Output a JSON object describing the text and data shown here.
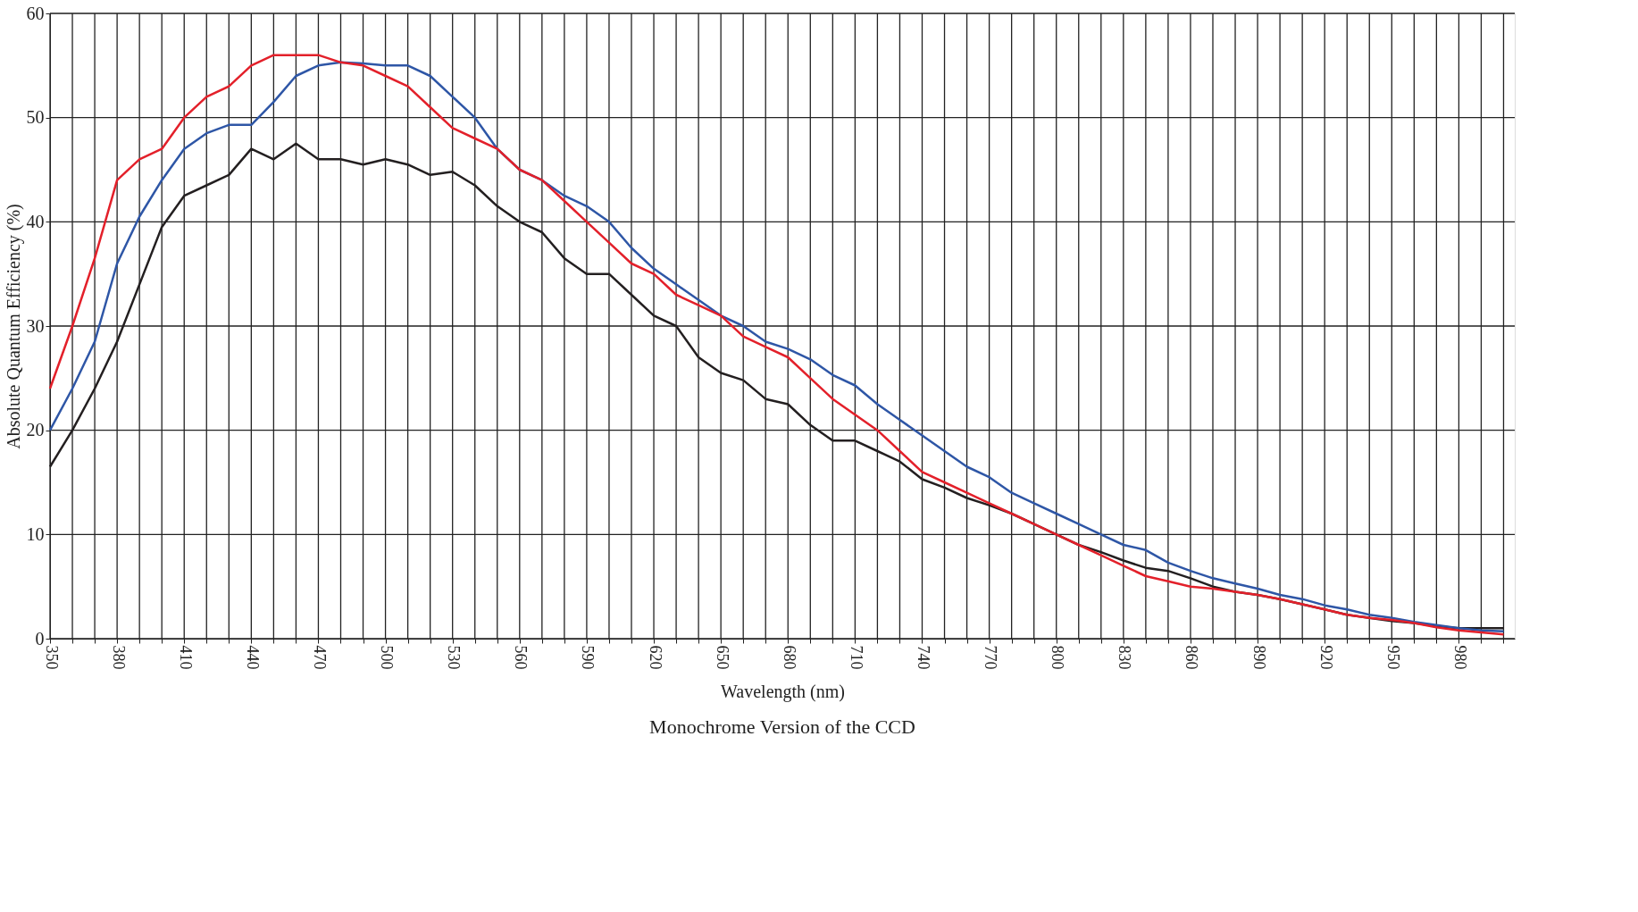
{
  "chart_data": {
    "type": "line",
    "xlabel": "Wavelength (nm)",
    "ylabel": "Absolute Quantum Efficiency (%)",
    "annotations": [
      "Monochrome Version of the CCD"
    ],
    "x": [
      350,
      360,
      370,
      380,
      390,
      400,
      410,
      420,
      430,
      440,
      450,
      460,
      470,
      480,
      490,
      500,
      510,
      520,
      530,
      540,
      550,
      560,
      570,
      580,
      590,
      600,
      610,
      620,
      630,
      640,
      650,
      660,
      670,
      680,
      690,
      700,
      710,
      720,
      730,
      740,
      750,
      760,
      770,
      780,
      790,
      800,
      810,
      820,
      830,
      840,
      850,
      860,
      870,
      880,
      890,
      900,
      910,
      920,
      930,
      940,
      950,
      960,
      970,
      980,
      990,
      1000
    ],
    "series": [
      {
        "color": "#231f20",
        "values": [
          16.5,
          20,
          24,
          28.5,
          34,
          39.5,
          42.5,
          43.5,
          44.5,
          47,
          46,
          47.5,
          46,
          46,
          45.5,
          46,
          45.5,
          44.5,
          44.8,
          43.5,
          41.5,
          40,
          39,
          36.5,
          35,
          35,
          33,
          31,
          30,
          27,
          25.5,
          24.8,
          23,
          22.5,
          20.5,
          19,
          19,
          18,
          17,
          15.3,
          14.5,
          13.5,
          12.8,
          12,
          11,
          10,
          9,
          8.3,
          7.5,
          6.8,
          6.5,
          5.8,
          5,
          4.5,
          4.2,
          3.8,
          3.3,
          2.8,
          2.3,
          2,
          1.7,
          1.5,
          1.2,
          1,
          1,
          1
        ]
      },
      {
        "color": "#2e56a6",
        "values": [
          20,
          24,
          28.5,
          36,
          40.5,
          44,
          47,
          48.5,
          49.3,
          49.3,
          51.5,
          54,
          55,
          55.3,
          55.2,
          55,
          55,
          54,
          52,
          50,
          47,
          45,
          44,
          42.5,
          41.5,
          40,
          37.5,
          35.5,
          34,
          32.5,
          31,
          30,
          28.5,
          27.8,
          26.8,
          25.3,
          24.3,
          22.5,
          21,
          19.5,
          18,
          16.5,
          15.5,
          14,
          13,
          12,
          11,
          10,
          9,
          8.5,
          7.3,
          6.5,
          5.8,
          5.3,
          4.8,
          4.2,
          3.8,
          3.2,
          2.8,
          2.3,
          2,
          1.6,
          1.3,
          1,
          0.8,
          0.7
        ]
      },
      {
        "color": "#e3202a",
        "values": [
          24,
          30,
          36.5,
          44,
          46,
          47,
          50,
          52,
          53,
          55,
          56,
          56,
          56,
          55.3,
          55,
          54,
          53,
          51,
          49,
          48,
          47,
          45,
          44,
          42,
          40,
          38,
          36,
          35,
          33,
          32,
          31,
          29,
          28,
          27,
          25,
          23,
          21.5,
          20,
          18,
          16,
          15,
          14,
          13,
          12,
          11,
          10,
          9,
          8,
          7,
          6,
          5.5,
          5,
          4.8,
          4.5,
          4.2,
          3.8,
          3.3,
          2.8,
          2.3,
          2,
          1.8,
          1.5,
          1.1,
          0.8,
          0.6,
          0.4
        ]
      }
    ],
    "xlim": [
      350,
      1005
    ],
    "xticks": [
      350,
      {
        "value": 360,
        "label": null
      },
      {
        "value": 370,
        "label": null
      },
      380,
      {
        "value": 390,
        "label": null
      },
      {
        "value": 400,
        "label": null
      },
      410,
      {
        "value": 420,
        "label": null
      },
      {
        "value": 430,
        "label": null
      },
      440,
      {
        "value": 450,
        "label": null
      },
      {
        "value": 460,
        "label": null
      },
      470,
      {
        "value": 480,
        "label": null
      },
      {
        "value": 490,
        "label": null
      },
      500,
      {
        "value": 510,
        "label": null
      },
      {
        "value": 520,
        "label": null
      },
      530,
      {
        "value": 540,
        "label": null
      },
      {
        "value": 550,
        "label": null
      },
      560,
      {
        "value": 570,
        "label": null
      },
      {
        "value": 580,
        "label": null
      },
      590,
      {
        "value": 600,
        "label": null
      },
      {
        "value": 610,
        "label": null
      },
      620,
      {
        "value": 630,
        "label": null
      },
      {
        "value": 640,
        "label": null
      },
      650,
      {
        "value": 660,
        "label": null
      },
      {
        "value": 670,
        "label": null
      },
      680,
      {
        "value": 690,
        "label": null
      },
      {
        "value": 700,
        "label": null
      },
      710,
      {
        "value": 720,
        "label": null
      },
      {
        "value": 730,
        "label": null
      },
      740,
      {
        "value": 750,
        "label": null
      },
      {
        "value": 760,
        "label": null
      },
      770,
      {
        "value": 780,
        "label": null
      },
      {
        "value": 790,
        "label": null
      },
      800,
      {
        "value": 810,
        "label": null
      },
      {
        "value": 820,
        "label": null
      },
      830,
      {
        "value": 840,
        "label": null
      },
      {
        "value": 850,
        "label": null
      },
      860,
      {
        "value": 870,
        "label": null
      },
      {
        "value": 880,
        "label": null
      },
      890,
      {
        "value": 900,
        "label": null
      },
      {
        "value": 910,
        "label": null
      },
      920,
      {
        "value": 930,
        "label": null
      },
      {
        "value": 940,
        "label": null
      },
      950,
      {
        "value": 960,
        "label": null
      },
      {
        "value": 970,
        "label": null
      },
      980,
      {
        "value": 990,
        "label": null
      },
      {
        "value": 1000,
        "label": null
      }
    ],
    "ylim": [
      0,
      60
    ],
    "yticks": [
      0,
      10,
      20,
      30,
      40,
      50,
      60
    ],
    "grid": true,
    "marker": "none",
    "line_style": "solid"
  }
}
